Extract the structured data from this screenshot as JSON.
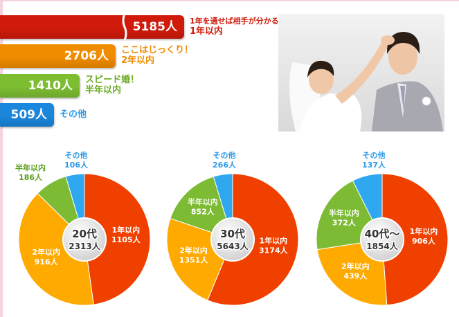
{
  "bars": [
    {
      "value_label": "5185人",
      "value": 5185,
      "label_line1": "1年を通せば相手が分かる！",
      "label_line2": "1年以内",
      "color": "#d01a0a",
      "text_color": "#d01a0a"
    },
    {
      "value_label": "2706人",
      "value": 2706,
      "label_line1": "ここはじっくり！",
      "label_line2": "2年以内",
      "color": "#f08c00",
      "text_color": "#f08c00"
    },
    {
      "value_label": "1410人",
      "value": 1410,
      "label_line1": "スピード婚！",
      "label_line2": "半年以内",
      "color": "#7cbd32",
      "text_color": "#6aaa22"
    },
    {
      "value_label": "509人",
      "value": 509,
      "label_line1": "その他",
      "label_line2": "",
      "color": "#1a86dc",
      "text_color": "#2a9ae8"
    }
  ],
  "chart_data": [
    {
      "type": "pie",
      "center_title": "20代",
      "center_total": "2313人",
      "slices": [
        {
          "name": "1年以内",
          "value_label": "1105人",
          "value": 1105,
          "color": "#f04000"
        },
        {
          "name": "2年以内",
          "value_label": "916人",
          "value": 916,
          "color": "#ffaa00"
        },
        {
          "name": "半年以内",
          "value_label": "186人",
          "value": 186,
          "color": "#7cbb33"
        },
        {
          "name": "その他",
          "value_label": "106人",
          "value": 106,
          "color": "#30a8f0"
        }
      ]
    },
    {
      "type": "pie",
      "center_title": "30代",
      "center_total": "5643人",
      "slices": [
        {
          "name": "1年以内",
          "value_label": "3174人",
          "value": 3174,
          "color": "#f04000"
        },
        {
          "name": "2年以内",
          "value_label": "1351人",
          "value": 1351,
          "color": "#ffaa00"
        },
        {
          "name": "半年以内",
          "value_label": "852人",
          "value": 852,
          "color": "#7cbb33"
        },
        {
          "name": "その他",
          "value_label": "266人",
          "value": 266,
          "color": "#30a8f0"
        }
      ]
    },
    {
      "type": "pie",
      "center_title": "40代〜",
      "center_total": "1854人",
      "slices": [
        {
          "name": "1年以内",
          "value_label": "906人",
          "value": 906,
          "color": "#f04000"
        },
        {
          "name": "2年以内",
          "value_label": "439人",
          "value": 439,
          "color": "#ffaa00"
        },
        {
          "name": "半年以内",
          "value_label": "372人",
          "value": 372,
          "color": "#7cbb33"
        },
        {
          "name": "その他",
          "value_label": "137人",
          "value": 137,
          "color": "#30a8f0"
        }
      ]
    }
  ]
}
